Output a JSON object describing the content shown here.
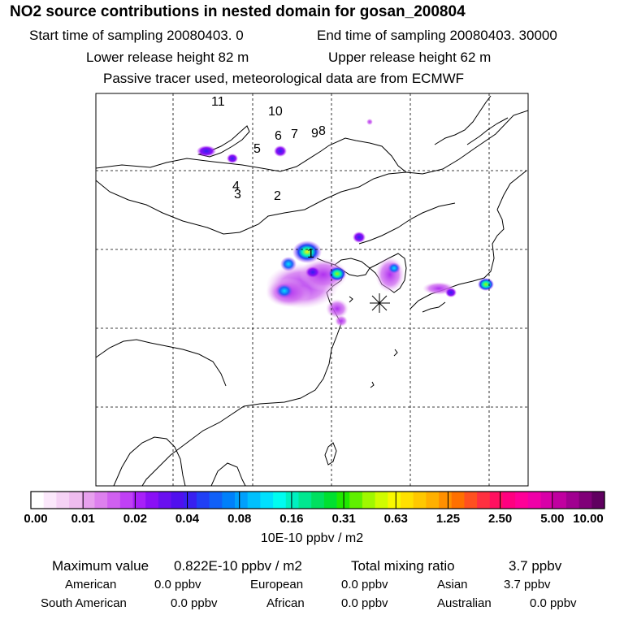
{
  "title": "NO2 source contributions in nested domain for gosan_200804",
  "header": {
    "start_label": "Start time of sampling 20080403.    0",
    "end_label": "End time of sampling 20080403. 30000",
    "lower_label": "Lower release height   82 m",
    "upper_label": "Upper release height   62 m",
    "tracer_note": "Passive tracer used, meteorological data are from ECMWF"
  },
  "map": {
    "site_marker": "asterisk-icon",
    "source_labels": [
      "1",
      "2",
      "3",
      "4",
      "5",
      "6",
      "7",
      "8",
      "9",
      "10",
      "11"
    ]
  },
  "colorbar": {
    "tick_labels": [
      "0.00",
      "0.01",
      "0.02",
      "0.04",
      "0.08",
      "0.16",
      "0.31",
      "0.63",
      "1.25",
      "2.50",
      "5.00",
      "10.00"
    ],
    "colors": [
      "#ffffff",
      "#fbe8fb",
      "#f5d2f5",
      "#efbcef",
      "#e7a0ee",
      "#dd80ee",
      "#d060f0",
      "#c040f5",
      "#a820f8",
      "#8a10f5",
      "#6a10f0",
      "#5010ee",
      "#3820f0",
      "#2040f5",
      "#1060f8",
      "#0080fa",
      "#00a0fc",
      "#00c0fd",
      "#00e0fe",
      "#00fcf0",
      "#00f0c0",
      "#00e890",
      "#00e060",
      "#00e030",
      "#20e800",
      "#60f000",
      "#a0f800",
      "#d0fc00",
      "#f8f800",
      "#ffe000",
      "#ffc800",
      "#ffb000",
      "#ff9000",
      "#ff7000",
      "#ff5020",
      "#ff3040",
      "#ff1060",
      "#ff0080",
      "#ff0098",
      "#f000a8",
      "#d800a8",
      "#c000a0",
      "#a00090",
      "#800078",
      "#600060"
    ],
    "units": "10E-10 ppbv / m2"
  },
  "stats": {
    "max_label": "Maximum value",
    "max_value": "0.822E-10 ppbv / m2",
    "total_label": "Total mixing ratio",
    "total_value": "3.7 ppbv"
  },
  "regions": [
    {
      "name": "American",
      "value": "0.0 ppbv"
    },
    {
      "name": "European",
      "value": "0.0 ppbv"
    },
    {
      "name": "Asian",
      "value": "3.7 ppbv"
    },
    {
      "name": "South American",
      "value": "0.0 ppbv"
    },
    {
      "name": "African",
      "value": "0.0 ppbv"
    },
    {
      "name": "Australian",
      "value": "0.0 ppbv"
    }
  ]
}
